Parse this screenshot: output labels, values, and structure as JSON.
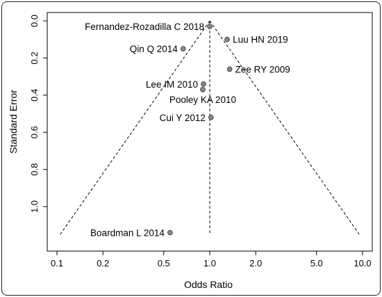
{
  "chart_data": {
    "type": "scatter",
    "subtype": "funnel-plot",
    "title": "",
    "xlabel": "Odds Ratio",
    "ylabel": "Standard Error",
    "x_scale": "log",
    "xlim": [
      0.1,
      10.0
    ],
    "ylim": [
      1.15,
      0.0
    ],
    "y_reversed": true,
    "x_ticks": [
      "0.1",
      "0.2",
      "0.5",
      "1.0",
      "2.0",
      "5.0",
      "10.0"
    ],
    "x_tick_values": [
      0.1,
      0.2,
      0.5,
      1.0,
      2.0,
      5.0,
      10.0
    ],
    "y_ticks": [
      "0.0",
      "0.2",
      "0.4",
      "0.6",
      "0.8",
      "1.0"
    ],
    "y_tick_values": [
      0.0,
      0.2,
      0.4,
      0.6,
      0.8,
      1.0
    ],
    "grid": false,
    "reference_line_or": 1.0,
    "funnel_se_max": 1.15,
    "marker_color": "#888888",
    "studies": [
      {
        "label": "Fernandez-Rozadilla C 2018",
        "or": 1.0,
        "se": 0.03,
        "label_side": "left"
      },
      {
        "label": "Luu HN 2019",
        "or": 1.3,
        "se": 0.1,
        "label_side": "right"
      },
      {
        "label": "Qin Q 2014",
        "or": 0.67,
        "se": 0.15,
        "label_side": "left"
      },
      {
        "label": "Zee RY 2009",
        "or": 1.35,
        "se": 0.26,
        "label_side": "right"
      },
      {
        "label": "Lee IM 2010",
        "or": 0.91,
        "se": 0.34,
        "label_side": "left"
      },
      {
        "label": "Pooley KA 2010",
        "or": 0.9,
        "se": 0.37,
        "label_side": "below"
      },
      {
        "label": "Cui Y 2012",
        "or": 1.02,
        "se": 0.52,
        "label_side": "left"
      },
      {
        "label": "Boardman L 2014",
        "or": 0.55,
        "se": 1.14,
        "label_side": "left"
      }
    ]
  }
}
